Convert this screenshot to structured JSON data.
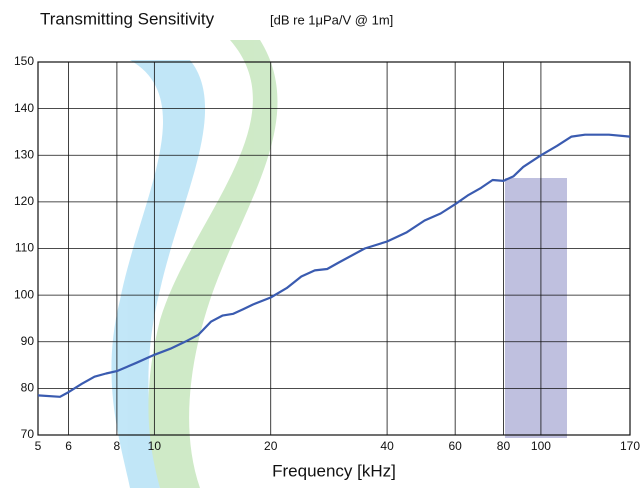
{
  "chart_data": {
    "type": "line",
    "title": "Transmitting Sensitivity",
    "units": "[dB re 1μPa/V @ 1m]",
    "xlabel": "Frequency [kHz]",
    "log_x": true,
    "grid": true,
    "xlim": [
      5,
      170
    ],
    "ylim": [
      70,
      150
    ],
    "xticks": [
      5,
      6,
      8,
      10,
      20,
      40,
      60,
      80,
      100,
      170
    ],
    "yticks": [
      70,
      80,
      90,
      100,
      110,
      120,
      130,
      140,
      150
    ],
    "series": [
      {
        "color": "#3a5bb0",
        "x": [
          5,
          5.7,
          6,
          6.5,
          7,
          7.5,
          8,
          9,
          10,
          11,
          12,
          13,
          14,
          15,
          16,
          17,
          18,
          20,
          22,
          24,
          26,
          28,
          30,
          35,
          40,
          45,
          50,
          55,
          60,
          65,
          70,
          75,
          80,
          85,
          90,
          100,
          110,
          120,
          130,
          150,
          170
        ],
        "values": [
          78.5,
          78.2,
          79.2,
          81,
          82.5,
          83.2,
          83.7,
          85.5,
          87.2,
          88.5,
          90,
          91.5,
          94.3,
          95.6,
          96,
          97,
          98,
          99.5,
          101.5,
          104,
          105.3,
          105.6,
          107,
          110,
          111.5,
          113.5,
          116,
          117.5,
          119.5,
          121.5,
          123,
          124.7,
          124.5,
          125.5,
          127.5,
          130,
          132,
          134,
          134.4,
          134.4,
          134
        ]
      }
    ]
  }
}
